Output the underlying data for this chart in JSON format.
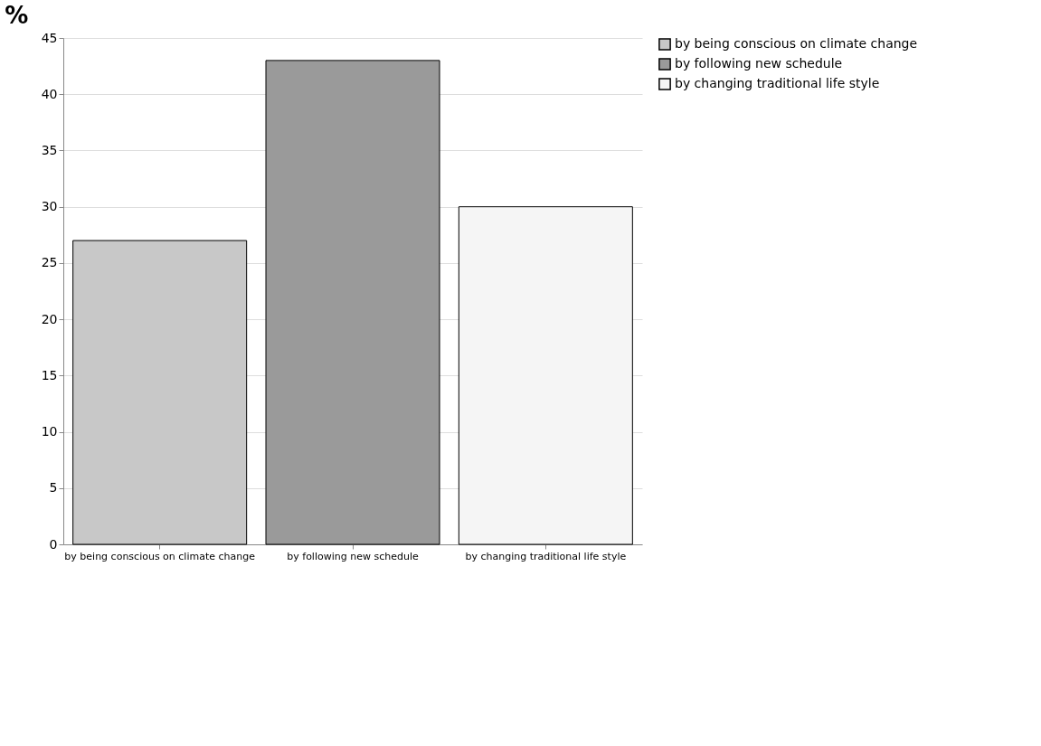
{
  "chart_data": {
    "type": "bar",
    "ylabel": "%",
    "categories": [
      "by being conscious on climate change",
      "by following new schedule",
      "by changing traditional life style"
    ],
    "series": [
      {
        "name": "by being conscious on climate change",
        "color": "#c8c8c8",
        "values": [
          27,
          null,
          null
        ]
      },
      {
        "name": "by following new schedule",
        "color": "#9a9a9a",
        "values": [
          null,
          43,
          null
        ]
      },
      {
        "name": "by changing traditional life style",
        "color": "#f5f5f5",
        "values": [
          null,
          null,
          30
        ]
      }
    ],
    "ylim": [
      0,
      45
    ],
    "yticks": [
      0,
      5,
      10,
      15,
      20,
      25,
      30,
      35,
      40,
      45
    ],
    "grid": "y",
    "legend": "right"
  }
}
